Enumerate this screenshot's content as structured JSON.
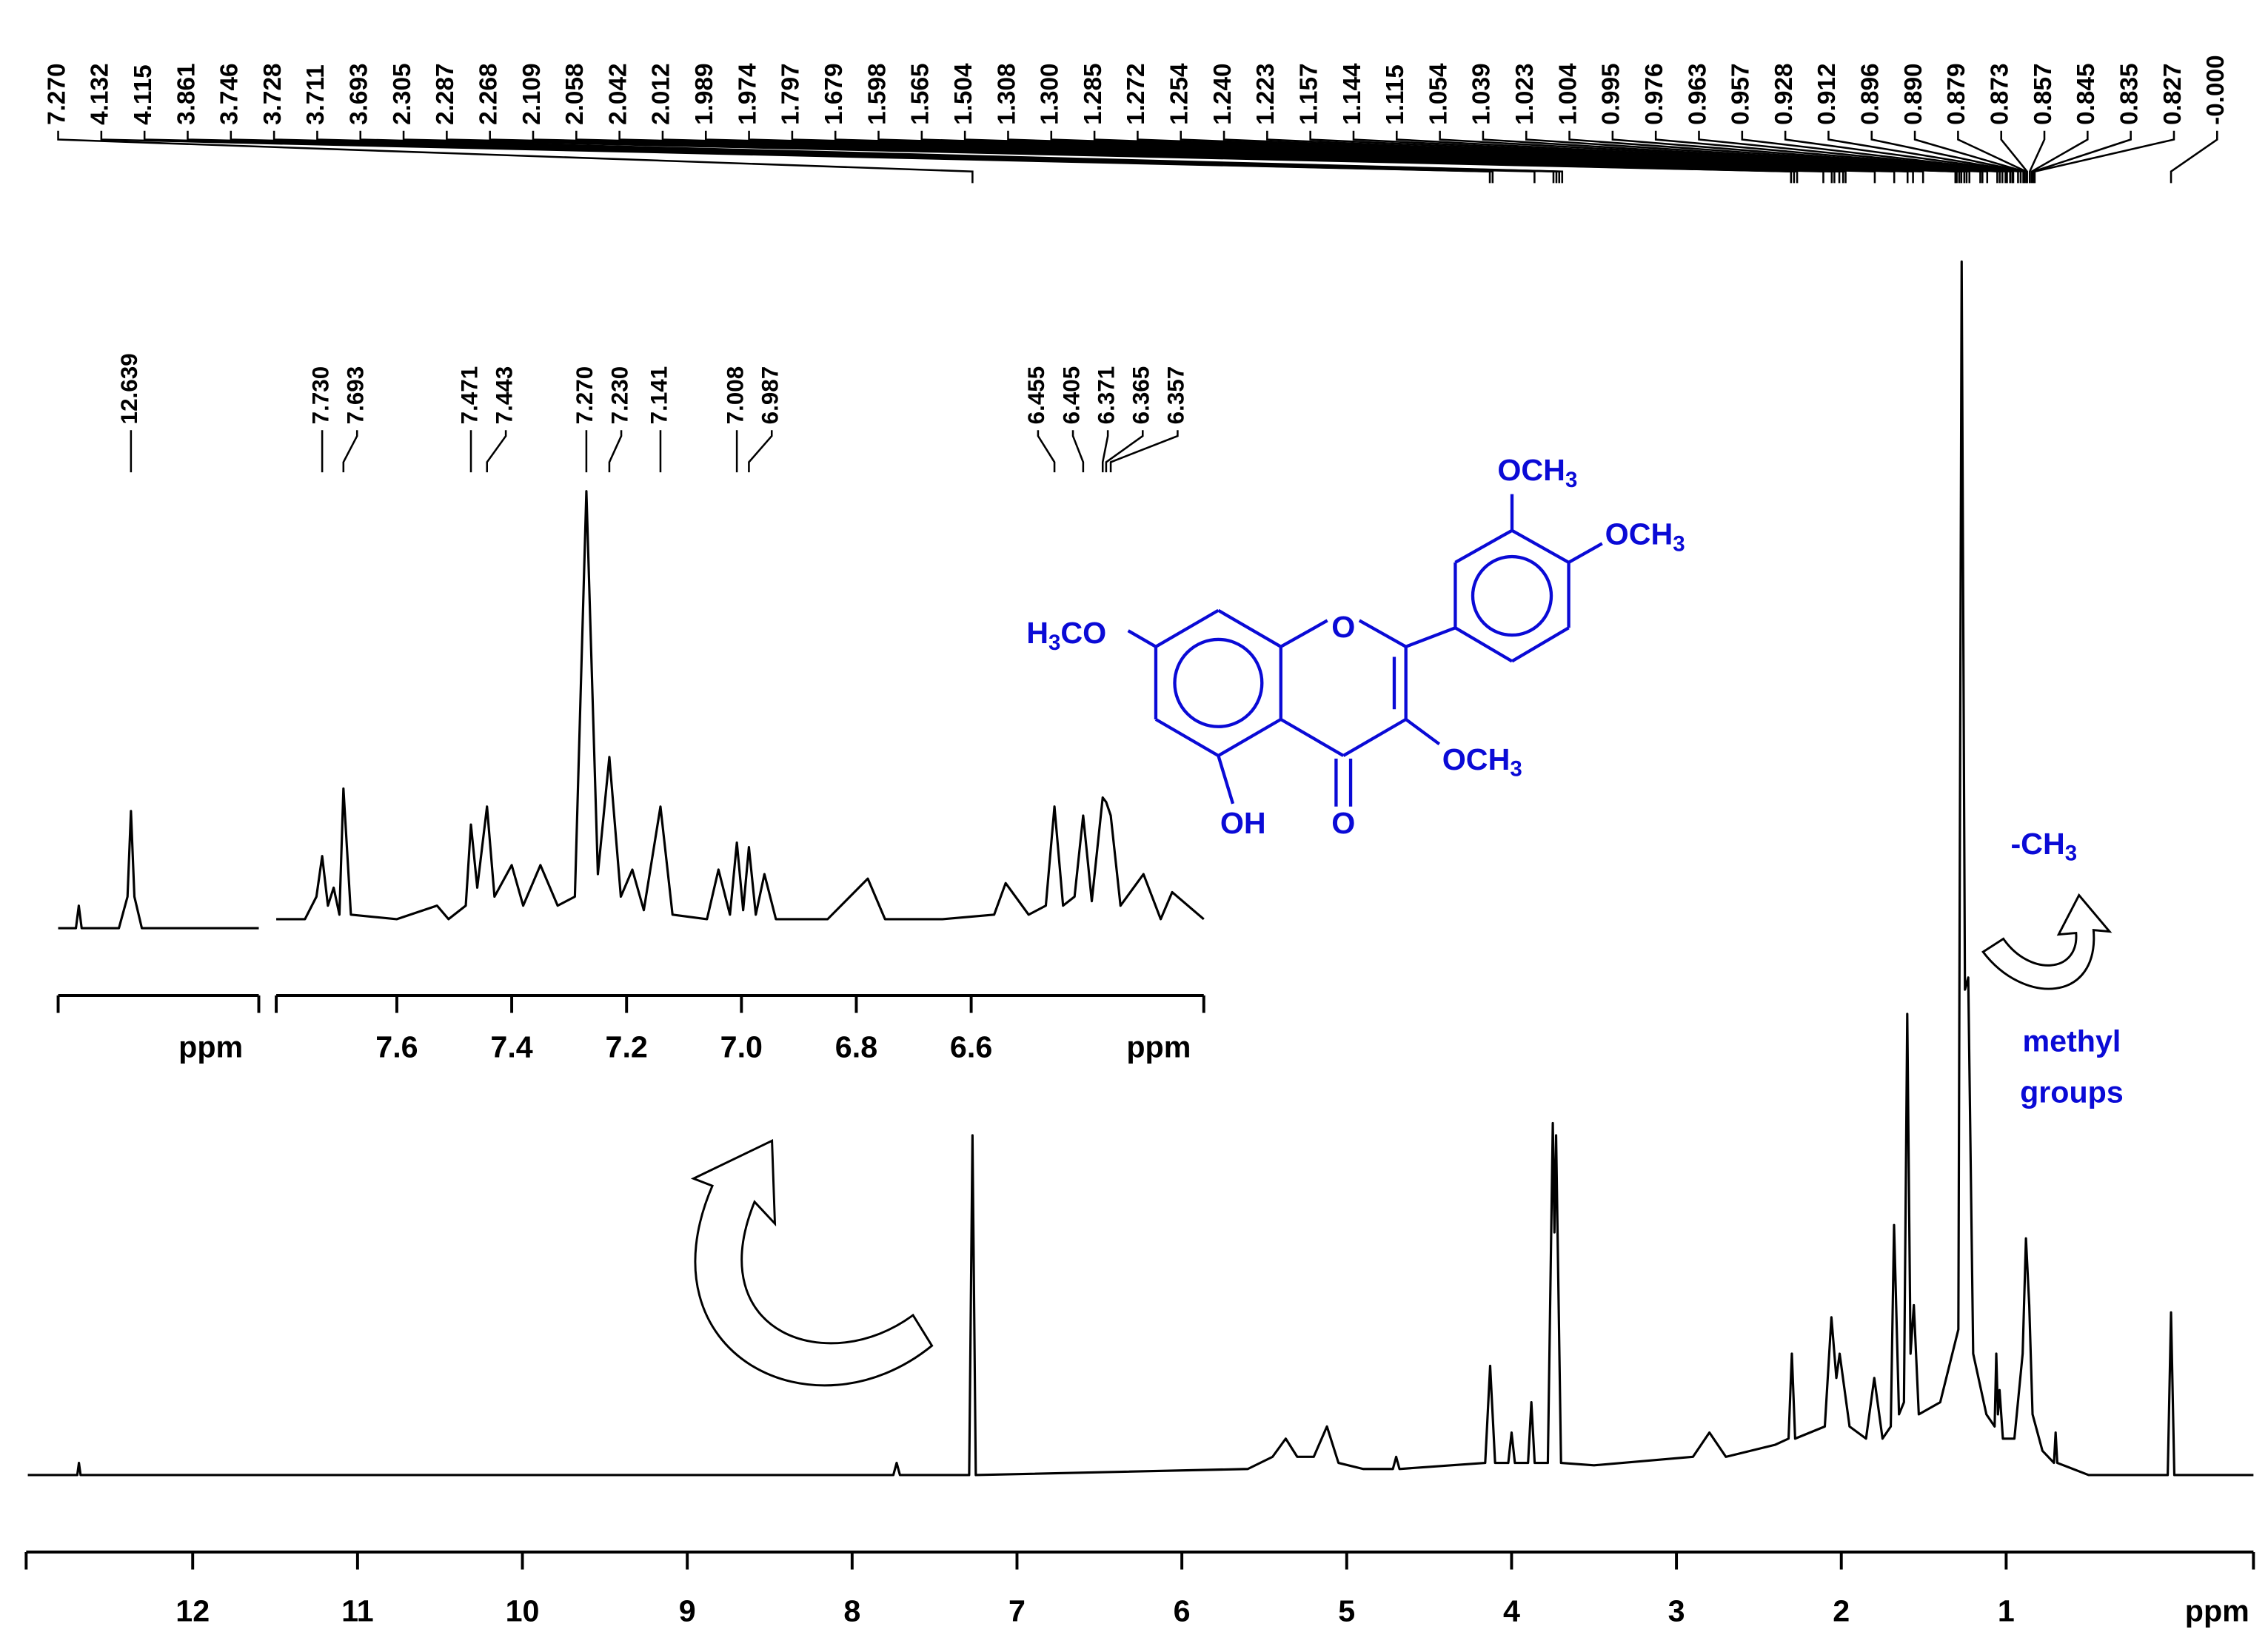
{
  "chart_data": [
    {
      "type": "line",
      "color": "#000000",
      "xlabel": "ppm",
      "xlim": [
        13.01,
        -0.5
      ],
      "xticks": [
        12,
        11,
        10,
        9,
        8,
        7,
        6,
        5,
        4,
        3,
        2,
        1
      ],
      "ylim": [
        0,
        100
      ],
      "x": [
        13.0,
        12.7,
        12.69,
        12.68,
        7.75,
        7.73,
        7.71,
        7.29,
        7.27,
        7.25,
        5.6,
        5.45,
        5.37,
        5.3,
        5.2,
        5.12,
        5.05,
        4.9,
        4.72,
        4.7,
        4.68,
        4.16,
        4.13,
        4.1,
        4.02,
        4.0,
        3.98,
        3.9,
        3.88,
        3.86,
        3.78,
        3.75,
        3.74,
        3.73,
        3.7,
        3.5,
        2.9,
        2.8,
        2.7,
        2.4,
        2.32,
        2.3,
        2.28,
        2.1,
        2.06,
        2.03,
        2.01,
        1.95,
        1.85,
        1.8,
        1.75,
        1.7,
        1.68,
        1.65,
        1.62,
        1.6,
        1.58,
        1.56,
        1.53,
        1.4,
        1.29,
        1.27,
        1.25,
        1.23,
        1.2,
        1.12,
        1.07,
        1.06,
        1.05,
        1.04,
        1.02,
        0.95,
        0.9,
        0.88,
        0.86,
        0.84,
        0.78,
        0.71,
        0.7,
        0.69,
        0.5,
        0.02,
        0.0,
        -0.02,
        -0.5
      ],
      "values": [
        0,
        0,
        1,
        0,
        0,
        1,
        0,
        0,
        28,
        0,
        0.5,
        1.5,
        3,
        1.5,
        1.5,
        4,
        1,
        0.5,
        0.5,
        1.5,
        0.5,
        1,
        9,
        1,
        1,
        3.5,
        1,
        1,
        6,
        1,
        1,
        29,
        20,
        28,
        1,
        0.8,
        1.5,
        3.5,
        1.5,
        2.5,
        3,
        10,
        3,
        4,
        13,
        8,
        10,
        4,
        3,
        8,
        3,
        4,
        20.6,
        5,
        6,
        38,
        10,
        14,
        5,
        6,
        12,
        100,
        40,
        41,
        10,
        5,
        4,
        10,
        5,
        7,
        3,
        3,
        10,
        19.5,
        14,
        5,
        2,
        1,
        3.5,
        1,
        0,
        0,
        13.4,
        0,
        0
      ],
      "peak_labels": [
        {
          "value": 7.27,
          "label": "7.270"
        },
        4.132,
        4.115,
        3.861,
        3.746,
        3.728,
        3.711,
        3.693,
        2.305,
        2.287,
        2.268,
        2.109,
        2.058,
        2.042,
        2.012,
        1.989,
        1.974,
        1.797,
        1.679,
        1.598,
        1.565,
        1.504,
        1.308,
        {
          "value": 1.3,
          "label": "1.300"
        },
        1.285,
        1.272,
        1.254,
        {
          "value": 1.24,
          "label": "1.240"
        },
        1.223,
        1.157,
        1.144,
        1.115,
        1.054,
        1.039,
        1.023,
        1.004,
        0.995,
        0.976,
        0.963,
        0.957,
        0.928,
        0.912,
        0.896,
        {
          "value": 0.89,
          "label": "0.890"
        },
        0.879,
        0.873,
        0.857,
        0.845,
        0.835,
        0.827,
        {
          "value": 0,
          "label": "-0.000"
        }
      ],
      "annotations": {
        "group": [
          "-CH",
          "3"
        ],
        "note": [
          "methyl",
          "groups"
        ]
      }
    },
    {
      "type": "line",
      "color": "#000000",
      "xlabel": "ppm",
      "xlim": [
        12.766,
        12.416
      ],
      "ylim": [
        0,
        100
      ],
      "x": [
        12.766,
        12.735,
        12.73,
        12.725,
        12.66,
        12.645,
        12.639,
        12.633,
        12.62,
        12.416
      ],
      "values": [
        3,
        3,
        8,
        3,
        3,
        10,
        29,
        10,
        3,
        3
      ],
      "peak_labels": [
        12.639
      ]
    },
    {
      "type": "line",
      "color": "#000000",
      "xlabel": "ppm",
      "xlim": [
        7.81,
        6.195
      ],
      "xticks": [
        7.6,
        7.4,
        7.2,
        {
          "value": 7,
          "label": "7.0"
        },
        6.8,
        6.6
      ],
      "ylim": [
        0,
        100
      ],
      "x": [
        7.81,
        7.76,
        7.74,
        7.73,
        7.72,
        7.71,
        7.7,
        7.693,
        7.68,
        7.6,
        7.53,
        7.51,
        7.48,
        7.471,
        7.46,
        7.443,
        7.43,
        7.4,
        7.38,
        7.35,
        7.32,
        7.29,
        7.27,
        7.25,
        7.23,
        7.21,
        7.19,
        7.17,
        7.141,
        7.12,
        7.06,
        7.04,
        7.02,
        7.008,
        6.997,
        6.987,
        6.975,
        6.96,
        6.94,
        6.85,
        6.78,
        6.75,
        6.65,
        6.56,
        6.54,
        6.5,
        6.47,
        6.455,
        6.44,
        6.42,
        6.405,
        6.39,
        6.371,
        6.365,
        6.357,
        6.34,
        6.3,
        6.27,
        6.25,
        6.195
      ],
      "values": [
        5,
        5,
        10,
        19,
        8,
        12,
        6,
        34,
        6,
        5,
        8,
        5,
        8,
        26,
        12,
        30,
        10,
        17,
        8,
        17,
        8,
        10,
        100,
        15,
        41,
        10,
        16,
        7,
        30,
        6,
        5,
        16,
        6,
        22,
        7,
        21,
        6,
        15,
        5,
        5,
        14,
        5,
        5,
        6,
        13,
        6,
        8,
        30,
        8,
        10,
        28,
        9,
        32,
        31,
        28,
        8,
        15,
        5,
        11,
        5
      ],
      "peak_labels": [
        {
          "value": 7.73,
          "label": "7.730"
        },
        7.693,
        7.471,
        7.443,
        {
          "value": 7.27,
          "label": "7.270"
        },
        {
          "value": 7.23,
          "label": "7.230"
        },
        7.141,
        7.008,
        6.987,
        6.455,
        6.405,
        6.371,
        6.365,
        6.357
      ]
    }
  ],
  "structure": {
    "ring_oxygen": "O",
    "carbonyl": "O",
    "hydroxyl": "OH",
    "methoxy_7": [
      "H",
      "3",
      "CO"
    ],
    "methoxy_3": [
      "OCH",
      "3"
    ],
    "methoxy_3p": [
      "OCH",
      "3"
    ],
    "methoxy_4p": [
      "OCH",
      "3"
    ]
  }
}
